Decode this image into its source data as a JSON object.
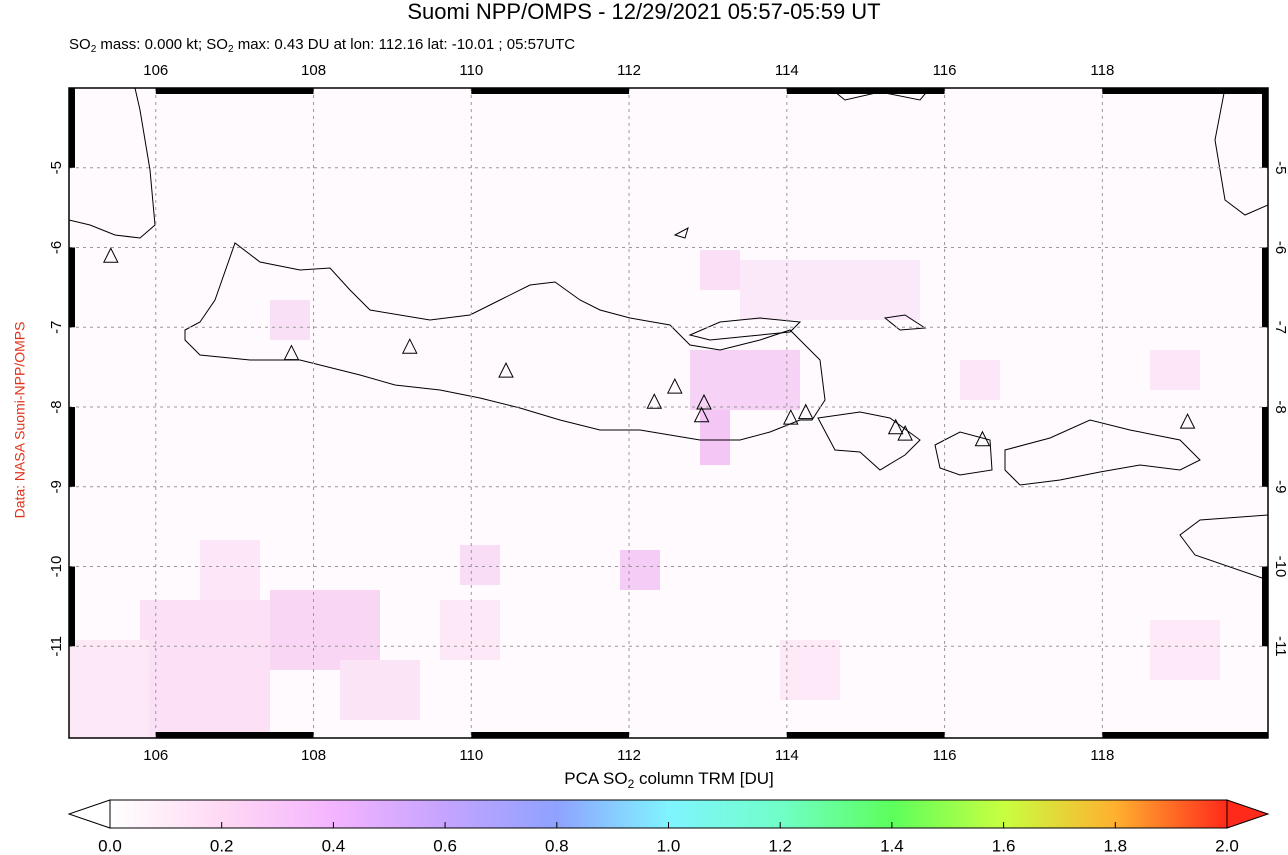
{
  "title": "Suomi NPP/OMPS - 12/29/2021 05:57-05:59 UT",
  "subtitle": [
    "SO",
    "2",
    " mass: 0.000 kt; SO",
    "2",
    " max: 0.43 DU at lon: 112.16 lat: -10.01 ; 05:57UTC"
  ],
  "credit": "Data: NASA Suomi-NPP/OMPS",
  "map": {
    "xlim": [
      104.9,
      120.1
    ],
    "ylim": [
      -12.15,
      -4.0
    ],
    "xticks": [
      106,
      108,
      110,
      112,
      114,
      116,
      118
    ],
    "yticks": [
      -5,
      -6,
      -7,
      -8,
      -9,
      -10,
      -11
    ],
    "grid": true,
    "volcanoes": {
      "lon": [
        105.43,
        107.72,
        109.22,
        110.44,
        112.32,
        112.58,
        112.95,
        112.92,
        114.05,
        114.24,
        115.38,
        115.5,
        116.48,
        119.08
      ],
      "lat": [
        -6.11,
        -7.33,
        -7.25,
        -7.55,
        -7.94,
        -7.75,
        -7.95,
        -8.11,
        -8.14,
        -8.07,
        -8.26,
        -8.34,
        -8.41,
        -8.19
      ]
    }
  },
  "colorbar": {
    "label": [
      "PCA SO",
      "2",
      " column TRM [DU]"
    ],
    "lim": [
      0,
      2
    ],
    "ticks": [
      {
        "value": 0,
        "label": "0.0"
      },
      0.2,
      0.4,
      0.6,
      0.8,
      {
        "value": 1,
        "label": "1.0"
      },
      1.2,
      1.4,
      1.6,
      1.8,
      {
        "value": 2,
        "label": "2.0"
      }
    ]
  }
}
